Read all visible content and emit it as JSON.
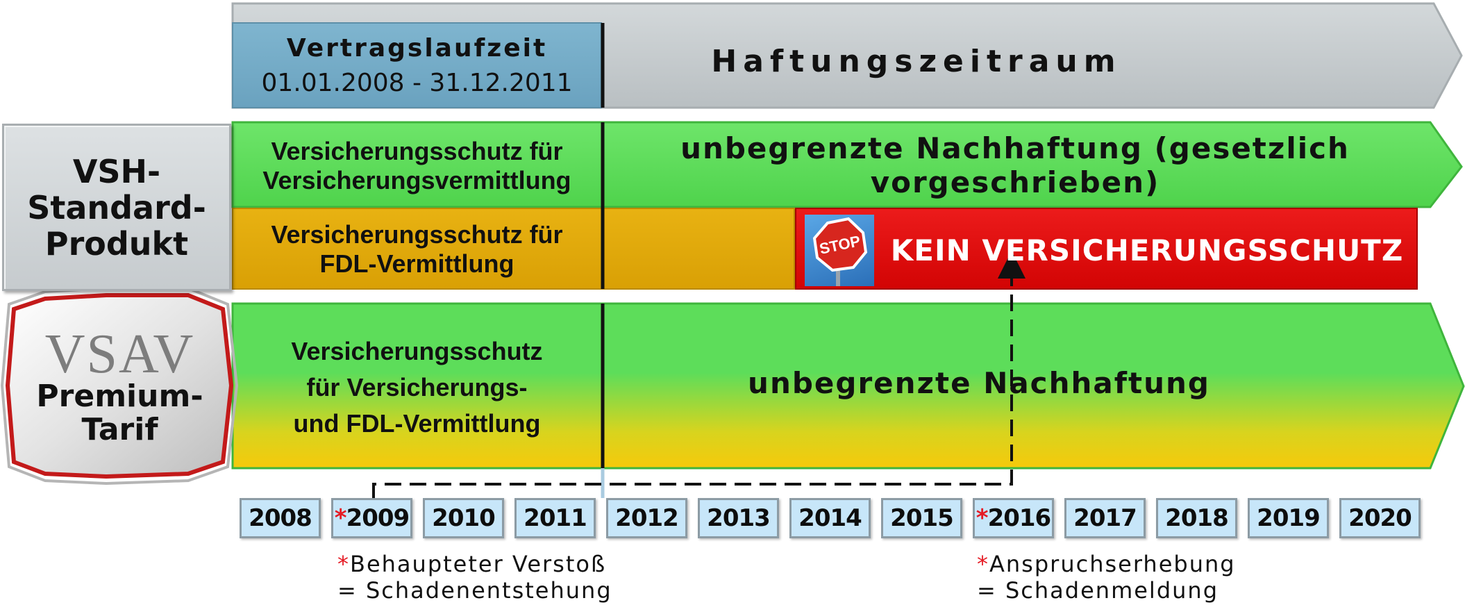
{
  "header": {
    "contract_title": "Vertragslaufzeit",
    "contract_period": "01.01.2008 - 31.12.2011",
    "liability_period": "Haftungszeitraum"
  },
  "standard_product": {
    "label_line1": "VSH-",
    "label_line2": "Standard-",
    "label_line3": "Produkt",
    "row1_left_line1": "Versicherungsschutz für",
    "row1_left_line2": "Versicherungsvermittlung",
    "row1_right": "unbegrenzte Nachhaftung (gesetzlich vorgeschrieben)",
    "row2_left_line1": "Versicherungsschutz für",
    "row2_left_line2": "FDL-Vermittlung",
    "row2_stop_text": "STOP",
    "row2_right": "KEIN VERSICHERUNGSSCHUTZ"
  },
  "premium": {
    "badge_logo": "VSAV",
    "badge_line1": "Premium-",
    "badge_line2": "Tarif",
    "left_line1": "Versicherungsschutz",
    "left_line2": "für Versicherungs-",
    "left_line3": "und FDL-Vermittlung",
    "right": "unbegrenzte Nachhaftung"
  },
  "timeline": {
    "years": [
      {
        "label": "2008",
        "marked": false
      },
      {
        "label": "2009",
        "marked": true
      },
      {
        "label": "2010",
        "marked": false
      },
      {
        "label": "2011",
        "marked": false
      },
      {
        "label": "2012",
        "marked": false
      },
      {
        "label": "2013",
        "marked": false
      },
      {
        "label": "2014",
        "marked": false
      },
      {
        "label": "2015",
        "marked": false
      },
      {
        "label": "2016",
        "marked": true
      },
      {
        "label": "2017",
        "marked": false
      },
      {
        "label": "2018",
        "marked": false
      },
      {
        "label": "2019",
        "marked": false
      },
      {
        "label": "2020",
        "marked": false
      }
    ],
    "star": "*"
  },
  "notes": {
    "left_line1": "Behaupteter Verstoß",
    "left_line2": "= Schadenentstehung",
    "right_line1": "Anspruchserhebung",
    "right_line2": "= Schadenmeldung"
  },
  "colors": {
    "contract_blue": "#77aec9",
    "gray_arrow": "#c3c9cb",
    "green": "#5ddd5a",
    "orange": "#e2ab0a",
    "red": "#e20a0a",
    "yellow": "#f4cc10",
    "star_red": "#e51b24"
  }
}
